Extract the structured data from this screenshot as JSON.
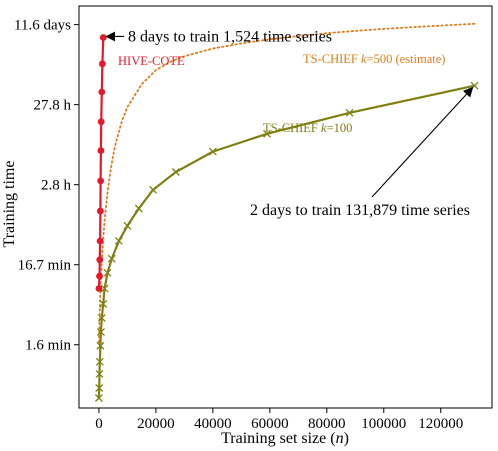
{
  "chart_data": {
    "type": "line",
    "xlabel": "Training set size (",
    "xlabel_var": "n",
    "xlabel_end": ")",
    "ylabel": "Training time",
    "y_scale": "log",
    "y_unit": "hours",
    "xlim": [
      -7000,
      138000
    ],
    "ylim_hours": [
      0.0045,
      475
    ],
    "grid": false,
    "x_ticks": [
      0,
      20000,
      40000,
      60000,
      80000,
      100000,
      120000
    ],
    "x_tick_labels": [
      "0",
      "20000",
      "40000",
      "60000",
      "80000",
      "100000",
      "120000"
    ],
    "y_ticks_hours": [
      0.02778,
      0.2778,
      2.78,
      27.8,
      278
    ],
    "y_tick_labels": [
      "1.6 min",
      "16.7 min",
      "2.8 h",
      "27.8 h",
      "11.6 days"
    ],
    "series": [
      {
        "name": "HIVE-COTE",
        "color": "#e8182c",
        "marker": "circle",
        "line": "solid",
        "x": [
          0,
          200,
          300,
          400,
          500,
          600,
          700,
          800,
          1000,
          1200,
          1524
        ],
        "y_hours": [
          0.14,
          0.2,
          0.32,
          0.55,
          1.3,
          3.1,
          7.4,
          17,
          40,
          90,
          192
        ]
      },
      {
        "name": "TS-CHIEF ",
        "name_var": "k",
        "name_end": "=100",
        "color": "#7f7f12",
        "marker": "x",
        "line": "solid",
        "x": [
          0,
          100,
          200,
          300,
          500,
          700,
          1000,
          1500,
          2000,
          3000,
          4500,
          7000,
          10000,
          14000,
          19000,
          27000,
          40000,
          59000,
          88000,
          131879
        ],
        "y_hours": [
          0.006,
          0.008,
          0.012,
          0.017,
          0.027,
          0.04,
          0.06,
          0.09,
          0.14,
          0.22,
          0.33,
          0.55,
          0.85,
          1.4,
          2.4,
          4.0,
          7.2,
          12,
          22,
          48
        ]
      },
      {
        "name": "TS-CHIEF ",
        "name_var": "k",
        "name_end": "=500 (estimate)",
        "color": "#e07c1a",
        "marker": "none",
        "line": "dotted",
        "x": [
          0,
          500,
          1000,
          1524,
          2000,
          3000,
          4000,
          5000,
          6000,
          8000,
          10000,
          15000,
          20000,
          25000,
          30000,
          40000,
          50000,
          60000,
          70000,
          80000,
          90000,
          100000,
          110000,
          120000,
          131879
        ],
        "y_hours": [
          0.03,
          0.135,
          0.3,
          0.6,
          1.0,
          2.2,
          4.0,
          6.5,
          9.5,
          17,
          26,
          50,
          75,
          95,
          112,
          140,
          162,
          182,
          200,
          217,
          232,
          246,
          258,
          270,
          285
        ]
      }
    ],
    "annotations": [
      {
        "text": "8 days to train 1,524 time series",
        "target_x": 1524,
        "target_y_hours": 192
      },
      {
        "text": "2 days to train 131,879 time series",
        "target_x": 131879,
        "target_y_hours": 48
      }
    ]
  }
}
